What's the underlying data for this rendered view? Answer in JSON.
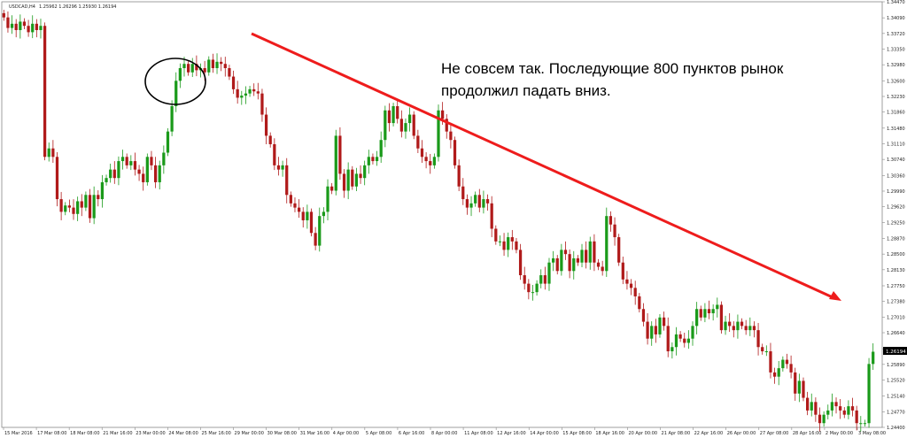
{
  "header": {
    "symbol": "USDCAD,H4",
    "ohlc": "1.25962 1.26296 1.25930 1.26194"
  },
  "annotation": {
    "line1": "Не совсем так. Последующие 800 пунктов рынок",
    "line2": "продолжил падать вниз."
  },
  "price_label": "1.26194",
  "colors": {
    "bull": "#1a9a1a",
    "bear": "#b01a1a",
    "trend_arrow": "#ee1c1c",
    "price_label_bg": "#000000",
    "price_label_text": "#ffffff",
    "axis": "#888888"
  },
  "chart_data": {
    "type": "candlestick",
    "symbol": "USDCAD",
    "timeframe": "H4",
    "ylim": [
      1.244,
      1.3447
    ],
    "y_ticks": [
      "1.34470",
      "1.34090",
      "1.33720",
      "1.33350",
      "1.32980",
      "1.32600",
      "1.32230",
      "1.31860",
      "1.31480",
      "1.31110",
      "1.30740",
      "1.30360",
      "1.29990",
      "1.29620",
      "1.29250",
      "1.28870",
      "1.28500",
      "1.28130",
      "1.27750",
      "1.27380",
      "1.27010",
      "1.26640",
      "1.26260",
      "1.25890",
      "1.25520",
      "1.25140",
      "1.24770",
      "1.24400"
    ],
    "x_ticks": [
      "15 Mar 2016",
      "17 Mar 08:00",
      "18 Mar 08:00",
      "21 Mar 16:00",
      "23 Mar 00:00",
      "24 Mar 08:00",
      "25 Mar 16:00",
      "29 Mar 00:00",
      "30 Mar 08:00",
      "31 Mar 16:00",
      "4 Apr 00:00",
      "5 Apr 08:00",
      "6 Apr 16:00",
      "8 Apr 00:00",
      "11 Apr 08:00",
      "12 Apr 16:00",
      "14 Apr 00:00",
      "15 Apr 08:00",
      "18 Apr 16:00",
      "20 Apr 00:00",
      "21 Apr 08:00",
      "22 Apr 16:00",
      "26 Apr 00:00",
      "27 Apr 08:00",
      "28 Apr 16:00",
      "2 May 00:00",
      "3 May 08:00"
    ],
    "closes": [
      1.341,
      1.3385,
      1.3395,
      1.338,
      1.34,
      1.339,
      1.3375,
      1.3395,
      1.338,
      1.339,
      1.308,
      1.31,
      1.308,
      1.298,
      1.295,
      1.2965,
      1.296,
      1.2945,
      1.2975,
      1.296,
      1.299,
      1.2935,
      1.299,
      1.298,
      1.302,
      1.303,
      1.305,
      1.303,
      1.307,
      1.308,
      1.306,
      1.307,
      1.305,
      1.304,
      1.302,
      1.308,
      1.306,
      1.302,
      1.306,
      1.309,
      1.314,
      1.32,
      1.326,
      1.329,
      1.33,
      1.328,
      1.33,
      1.3285,
      1.329,
      1.328,
      1.331,
      1.329,
      1.3305,
      1.33,
      1.329,
      1.327,
      1.324,
      1.322,
      1.3225,
      1.323,
      1.324,
      1.3235,
      1.323,
      1.318,
      1.313,
      1.311,
      1.306,
      1.305,
      1.306,
      1.299,
      1.297,
      1.296,
      1.295,
      1.293,
      1.295,
      1.29,
      1.287,
      1.294,
      1.295,
      1.301,
      1.3,
      1.313,
      1.304,
      1.3,
      1.305,
      1.301,
      1.304,
      1.303,
      1.306,
      1.308,
      1.307,
      1.308,
      1.312,
      1.319,
      1.316,
      1.32,
      1.317,
      1.314,
      1.316,
      1.318,
      1.313,
      1.31,
      1.308,
      1.307,
      1.306,
      1.308,
      1.319,
      1.317,
      1.314,
      1.312,
      1.306,
      1.301,
      1.298,
      1.296,
      1.297,
      1.299,
      1.296,
      1.298,
      1.297,
      1.291,
      1.288,
      1.288,
      1.286,
      1.289,
      1.288,
      1.286,
      1.28,
      1.278,
      1.276,
      1.276,
      1.278,
      1.28,
      1.278,
      1.283,
      1.284,
      1.281,
      1.286,
      1.285,
      1.281,
      1.284,
      1.283,
      1.286,
      1.283,
      1.288,
      1.283,
      1.282,
      1.281,
      1.294,
      1.292,
      1.289,
      1.283,
      1.279,
      1.278,
      1.277,
      1.275,
      1.272,
      1.269,
      1.265,
      1.268,
      1.266,
      1.27,
      1.268,
      1.262,
      1.263,
      1.266,
      1.265,
      1.264,
      1.265,
      1.268,
      1.272,
      1.27,
      1.272,
      1.271,
      1.272,
      1.273,
      1.267,
      1.269,
      1.268,
      1.267,
      1.269,
      1.268,
      1.267,
      1.268,
      1.267,
      1.263,
      1.262,
      1.262,
      1.257,
      1.256,
      1.258,
      1.26,
      1.259,
      1.257,
      1.252,
      1.255,
      1.251,
      1.248,
      1.25,
      1.247,
      1.245,
      1.247,
      1.248,
      1.25,
      1.249,
      1.248,
      1.247,
      1.249,
      1.248,
      1.245,
      1.245,
      1.245,
      1.259,
      1.2619
    ]
  }
}
